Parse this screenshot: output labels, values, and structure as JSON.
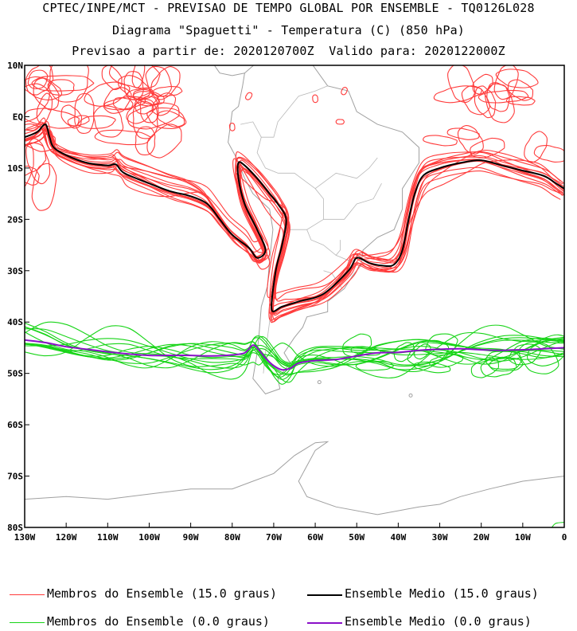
{
  "header": {
    "line1": "CPTEC/INPE/MCT - PREVISAO DE TEMPO GLOBAL POR ENSEMBLE - TQ0126L028",
    "line2": "Diagrama \"Spaguetti\" - Temperatura (C) (850 hPa)",
    "line3": "Previsao a partir de: 2020120700Z  Valido para: 2020122000Z"
  },
  "map": {
    "lon_range": [
      -130,
      0
    ],
    "lat_range": [
      -80,
      10
    ],
    "lat_labels": [
      "10N",
      "EQ",
      "10S",
      "20S",
      "30S",
      "40S",
      "50S",
      "60S",
      "70S",
      "80S"
    ],
    "lon_labels": [
      "130W",
      "120W",
      "110W",
      "100W",
      "90W",
      "80W",
      "70W",
      "60W",
      "50W",
      "40W",
      "30W",
      "20W",
      "10W",
      "0"
    ],
    "colors": {
      "member_15": "#ff3b3b",
      "mean_15": "#000000",
      "member_0": "#17d417",
      "mean_0": "#8a10c8",
      "coast": "#a0a0a0"
    }
  },
  "legend": {
    "member_15": "Membros do Ensemble (15.0 graus)",
    "mean_15": "Ensemble Medio (15.0 graus)",
    "member_0": "Membros do Ensemble (0.0 graus)",
    "mean_0": "Ensemble Medio (0.0 graus)"
  }
}
